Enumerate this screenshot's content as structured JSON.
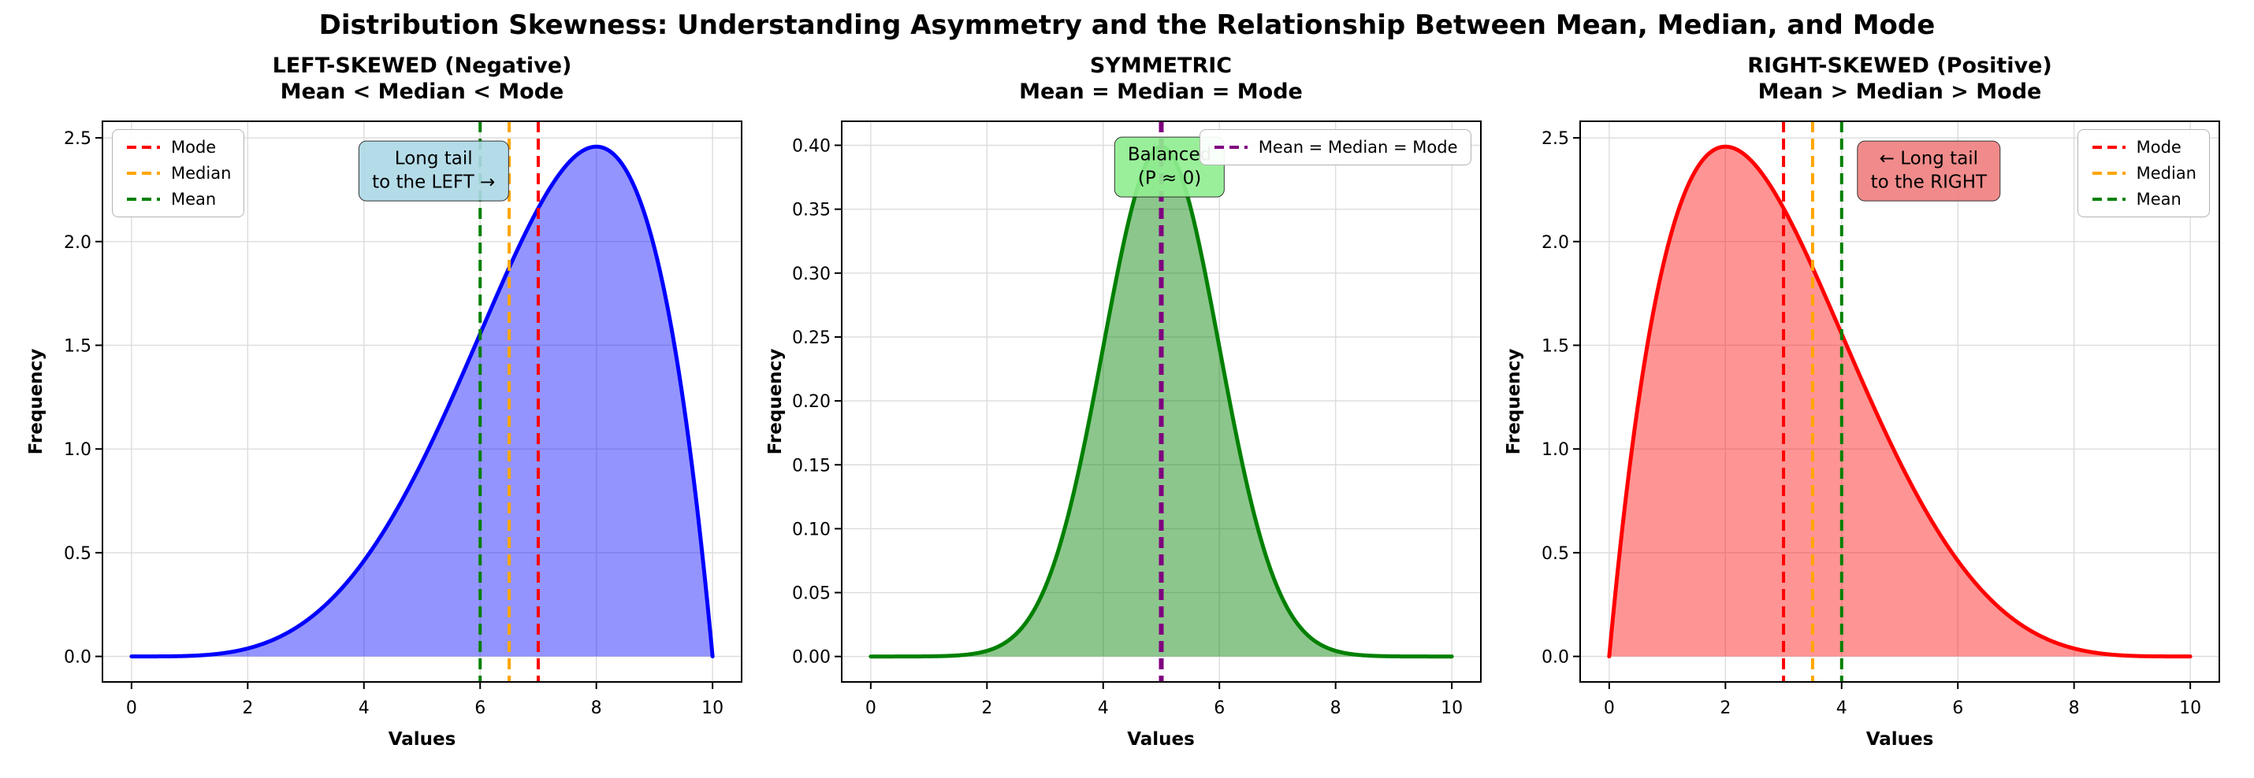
{
  "figure": {
    "suptitle": "Distribution Skewness: Understanding Asymmetry and the Relationship Between Mean, Median, and Mode",
    "background": "#ffffff"
  },
  "chart_data": [
    {
      "id": "left-skewed",
      "type": "area",
      "title_line1": "LEFT-SKEWED (Negative)",
      "title_line2": "Mean < Median < Mode",
      "xlabel": "Values",
      "ylabel": "Frequency",
      "xlim": [
        -0.5,
        10.5
      ],
      "ylim": [
        -0.123,
        2.58
      ],
      "xticks": [
        0,
        2,
        4,
        6,
        8,
        10
      ],
      "yticks": [
        0.0,
        0.5,
        1.0,
        1.5,
        2.0,
        2.5
      ],
      "xtick_decimals": 0,
      "ytick_decimals": 1,
      "grid": true,
      "curve": {
        "kind": "beta",
        "a": 5,
        "b": 2,
        "coef": 30,
        "x_scale": 10,
        "domain": [
          0,
          10
        ],
        "color": "#0000ff",
        "fill_opacity": 0.42,
        "line_width": 5
      },
      "points": {
        "x": [
          0,
          0.5,
          1,
          1.5,
          2,
          2.5,
          3,
          3.5,
          4,
          4.5,
          5,
          5.5,
          6,
          6.5,
          7,
          7.5,
          8,
          8.5,
          9,
          9.5,
          10
        ],
        "y": [
          0,
          0.0,
          0.003,
          0.013,
          0.038,
          0.088,
          0.17,
          0.293,
          0.461,
          0.677,
          0.938,
          1.235,
          1.555,
          1.874,
          2.161,
          2.373,
          2.458,
          2.349,
          1.968,
          1.222,
          0
        ]
      },
      "markers": [
        {
          "label": "Mode",
          "x": 7.0,
          "color": "#ff0000"
        },
        {
          "label": "Median",
          "x": 6.5,
          "color": "#ffa500"
        },
        {
          "label": "Mean",
          "x": 6.0,
          "color": "#008000"
        }
      ],
      "legend": {
        "position": "upper-left",
        "entries": [
          {
            "label": "Mode",
            "color": "#ff0000"
          },
          {
            "label": "Median",
            "color": "#ffa500"
          },
          {
            "label": "Mean",
            "color": "#008000"
          }
        ]
      },
      "annotation": {
        "line1": "Long tail",
        "line2": "to the LEFT →",
        "x": 5.2,
        "y": 2.34,
        "bg": "#add8e6e8",
        "border": "#333333"
      }
    },
    {
      "id": "symmetric",
      "type": "area",
      "title_line1": "SYMMETRIC",
      "title_line2": "Mean = Median = Mode",
      "xlabel": "Values",
      "ylabel": "Frequency",
      "xlim": [
        -0.5,
        10.5
      ],
      "ylim": [
        -0.0199,
        0.4188
      ],
      "xticks": [
        0,
        2,
        4,
        6,
        8,
        10
      ],
      "yticks": [
        0.0,
        0.05,
        0.1,
        0.15,
        0.2,
        0.25,
        0.3,
        0.35,
        0.4
      ],
      "xtick_decimals": 0,
      "ytick_decimals": 2,
      "grid": true,
      "curve": {
        "kind": "normal",
        "mu": 5,
        "sigma": 1,
        "coef": 0.3989,
        "domain": [
          0,
          10
        ],
        "color": "#008000",
        "fill_opacity": 0.45,
        "line_width": 5
      },
      "points": {
        "x": [
          0,
          0.5,
          1,
          1.5,
          2,
          2.5,
          3,
          3.5,
          4,
          4.5,
          5,
          5.5,
          6,
          6.5,
          7,
          7.5,
          8,
          8.5,
          9,
          9.5,
          10
        ],
        "y": [
          0,
          0,
          0,
          0.001,
          0.004,
          0.018,
          0.054,
          0.13,
          0.242,
          0.352,
          0.399,
          0.352,
          0.242,
          0.13,
          0.054,
          0.018,
          0.004,
          0.001,
          0,
          0,
          0
        ]
      },
      "markers": [
        {
          "label": "Mean = Median = Mode",
          "x": 5.0,
          "color": "#800080",
          "line_width": 6
        }
      ],
      "legend": {
        "position": "upper-right",
        "entries": [
          {
            "label": "Mean = Median = Mode",
            "color": "#800080"
          }
        ]
      },
      "annotation": {
        "line1": "Balanced",
        "line2": "(P ≈ 0)",
        "x": 5.15,
        "y": 0.383,
        "bg": "#90ee90e8",
        "border": "#333333"
      }
    },
    {
      "id": "right-skewed",
      "type": "area",
      "title_line1": "RIGHT-SKEWED (Positive)",
      "title_line2": "Mean > Median > Mode",
      "xlabel": "Values",
      "ylabel": "Frequency",
      "xlim": [
        -0.5,
        10.5
      ],
      "ylim": [
        -0.123,
        2.58
      ],
      "xticks": [
        0,
        2,
        4,
        6,
        8,
        10
      ],
      "yticks": [
        0.0,
        0.5,
        1.0,
        1.5,
        2.0,
        2.5
      ],
      "xtick_decimals": 0,
      "ytick_decimals": 1,
      "grid": true,
      "curve": {
        "kind": "beta",
        "a": 2,
        "b": 5,
        "coef": 30,
        "x_scale": 10,
        "domain": [
          0,
          10
        ],
        "color": "#ff0000",
        "fill_opacity": 0.42,
        "line_width": 5
      },
      "points": {
        "x": [
          0,
          0.5,
          1,
          1.5,
          2,
          2.5,
          3,
          3.5,
          4,
          4.5,
          5,
          5.5,
          6,
          6.5,
          7,
          7.5,
          8,
          8.5,
          9,
          9.5,
          10
        ],
        "y": [
          0,
          1.222,
          1.968,
          2.349,
          2.458,
          2.373,
          2.161,
          1.874,
          1.555,
          1.235,
          0.938,
          0.677,
          0.461,
          0.293,
          0.17,
          0.088,
          0.038,
          0.013,
          0.003,
          0.0,
          0
        ]
      },
      "markers": [
        {
          "label": "Mode",
          "x": 3.0,
          "color": "#ff0000"
        },
        {
          "label": "Median",
          "x": 3.5,
          "color": "#ffa500"
        },
        {
          "label": "Mean",
          "x": 4.0,
          "color": "#008000"
        }
      ],
      "legend": {
        "position": "upper-right",
        "entries": [
          {
            "label": "Mode",
            "color": "#ff0000"
          },
          {
            "label": "Median",
            "color": "#ffa500"
          },
          {
            "label": "Mean",
            "color": "#008000"
          }
        ]
      },
      "annotation": {
        "line1": "← Long tail",
        "line2": "to the RIGHT",
        "x": 5.5,
        "y": 2.34,
        "bg": "#f08080e8",
        "border": "#333333"
      }
    }
  ]
}
